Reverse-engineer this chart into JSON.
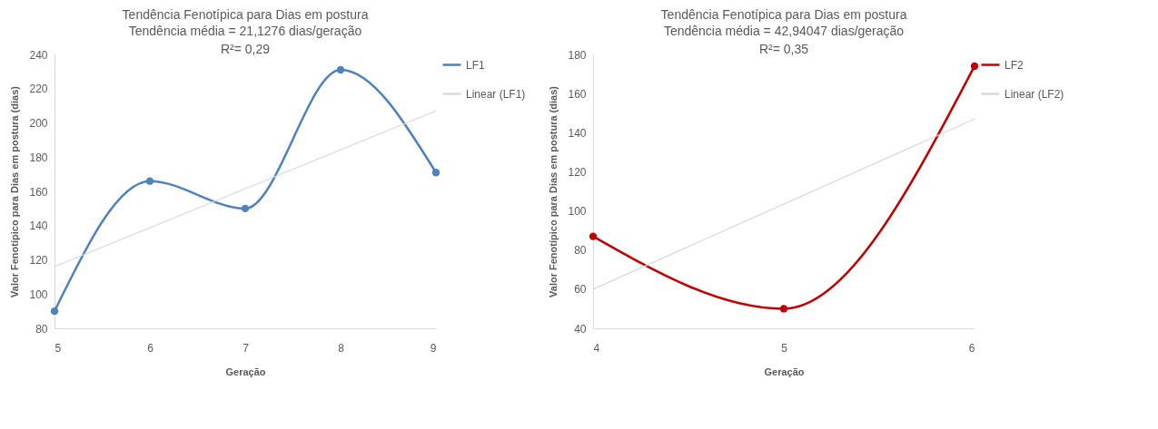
{
  "chart_data": [
    {
      "type": "line",
      "title": "Tendência Fenotípica para Dias em postura",
      "subtitle": "Tendência média = 21,1276 dias/geração",
      "annotations": [
        "R²= 0,29"
      ],
      "xlabel": "Geração",
      "ylabel": "Valor Fenotípico para Dias em postura (dias)",
      "xlim": [
        5,
        9
      ],
      "xticks": [
        5,
        6,
        7,
        8,
        9
      ],
      "ylim": [
        80,
        240
      ],
      "yticks": [
        80,
        100,
        120,
        140,
        160,
        180,
        200,
        220,
        240
      ],
      "grid": false,
      "legend": "right",
      "line_style": "solid",
      "series": [
        {
          "name": "LF1",
          "color": "#4f81bd",
          "marker": "circle",
          "x": [
            5,
            6,
            7,
            8,
            9
          ],
          "values": [
            90,
            166,
            150,
            231,
            171
          ]
        },
        {
          "name": "Linear (LF1)",
          "color": "#d9d9d9",
          "marker": "none",
          "x": [
            5,
            9
          ],
          "values": [
            116,
            207
          ]
        }
      ]
    },
    {
      "type": "line",
      "title": "Tendência Fenotípica para Dias em postura",
      "subtitle": "Tendência média = 42,94047 dias/geração",
      "annotations": [
        "R²= 0,35"
      ],
      "xlabel": "Geração",
      "ylabel": "Valor Fenotípico para  Dias em postura (dias)",
      "xlim": [
        4,
        6
      ],
      "xticks": [
        4,
        5,
        6
      ],
      "ylim": [
        40,
        180
      ],
      "yticks": [
        40,
        60,
        80,
        100,
        120,
        140,
        160,
        180
      ],
      "grid": false,
      "legend": "right",
      "line_style": "solid",
      "series": [
        {
          "name": "LF2",
          "color": "#c00000",
          "marker": "circle",
          "x": [
            4,
            5,
            6
          ],
          "values": [
            87,
            50,
            174
          ]
        },
        {
          "name": "Linear (LF2)",
          "color": "#d9d9d9",
          "marker": "none",
          "x": [
            4,
            6
          ],
          "values": [
            60,
            147
          ]
        }
      ]
    }
  ]
}
